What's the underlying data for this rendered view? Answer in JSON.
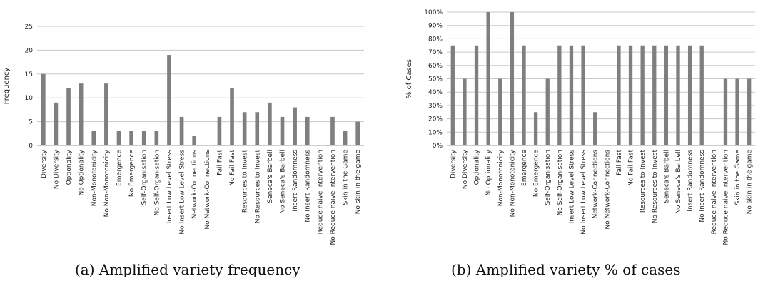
{
  "chart_data": [
    {
      "type": "bar",
      "caption": "(a) Amplified variety frequency",
      "ylabel": "Frequency",
      "xlabel": "",
      "ylim": [
        0,
        25
      ],
      "yticks": [
        "0",
        "5",
        "10",
        "15",
        "20",
        "25"
      ],
      "grid": true,
      "bar_color": "#7f7f7f",
      "categories": [
        "Diversity",
        "No Diversity",
        "Optionality",
        "No Optionality",
        "Non-Monotonicity",
        "No Non-Monotonicity",
        "Emergence",
        "No Emergence",
        "Self-Organisation",
        "No Self-Organisation",
        "Insert Low Level Stress",
        "No Insert Low Level Stress",
        "Network-Connections",
        "No Network-Connections",
        "Fail Fast",
        "No Fail Fast",
        "Resources to Invest",
        "No Resources to Invest",
        "Seneca's Barbell",
        "No Seneca's Barbell",
        "Insert Randomness",
        "No Insert Randomness",
        "Reduce naive intervention",
        "No Reduce naive intervention",
        "Skin in the Game",
        "No skin in the game"
      ],
      "values": [
        15,
        9,
        12,
        13,
        3,
        13,
        3,
        3,
        3,
        3,
        19,
        6,
        2,
        0,
        6,
        12,
        7,
        7,
        9,
        6,
        8,
        6,
        0,
        6,
        3,
        5
      ]
    },
    {
      "type": "bar",
      "caption": "(b) Amplified variety % of cases",
      "ylabel": "% of Cases",
      "xlabel": "",
      "ylim": [
        0,
        100
      ],
      "yticks": [
        "0%",
        "10%",
        "20%",
        "30%",
        "40%",
        "50%",
        "60%",
        "70%",
        "80%",
        "90%",
        "100%"
      ],
      "grid": true,
      "bar_color": "#7f7f7f",
      "categories": [
        "Diversity",
        "No Diversity",
        "Optionality",
        "No Optionality",
        "Non-Monotonicity",
        "No Non-Monotonicity",
        "Emergence",
        "No Emergence",
        "Self-Organisation",
        "No Self-Organisation",
        "Insert Low Level Stress",
        "No Insert Low Level Stress",
        "Network-Connections",
        "No Network-Connections",
        "Fail Fast",
        "No Fail Fast",
        "Resources to Invest",
        "No Resources to Invest",
        "Seneca's Barbell",
        "No Seneca's Barbell",
        "Insert Randomness",
        "No Insert Randomness",
        "Reduce naive intervention",
        "No Reduce naive intervention",
        "Skin in the Game",
        "No skin in the game"
      ],
      "values": [
        75,
        50,
        75,
        100,
        50,
        100,
        75,
        25,
        50,
        75,
        75,
        75,
        25,
        0,
        75,
        75,
        75,
        75,
        75,
        75,
        75,
        75,
        0,
        50,
        50,
        50
      ]
    }
  ]
}
